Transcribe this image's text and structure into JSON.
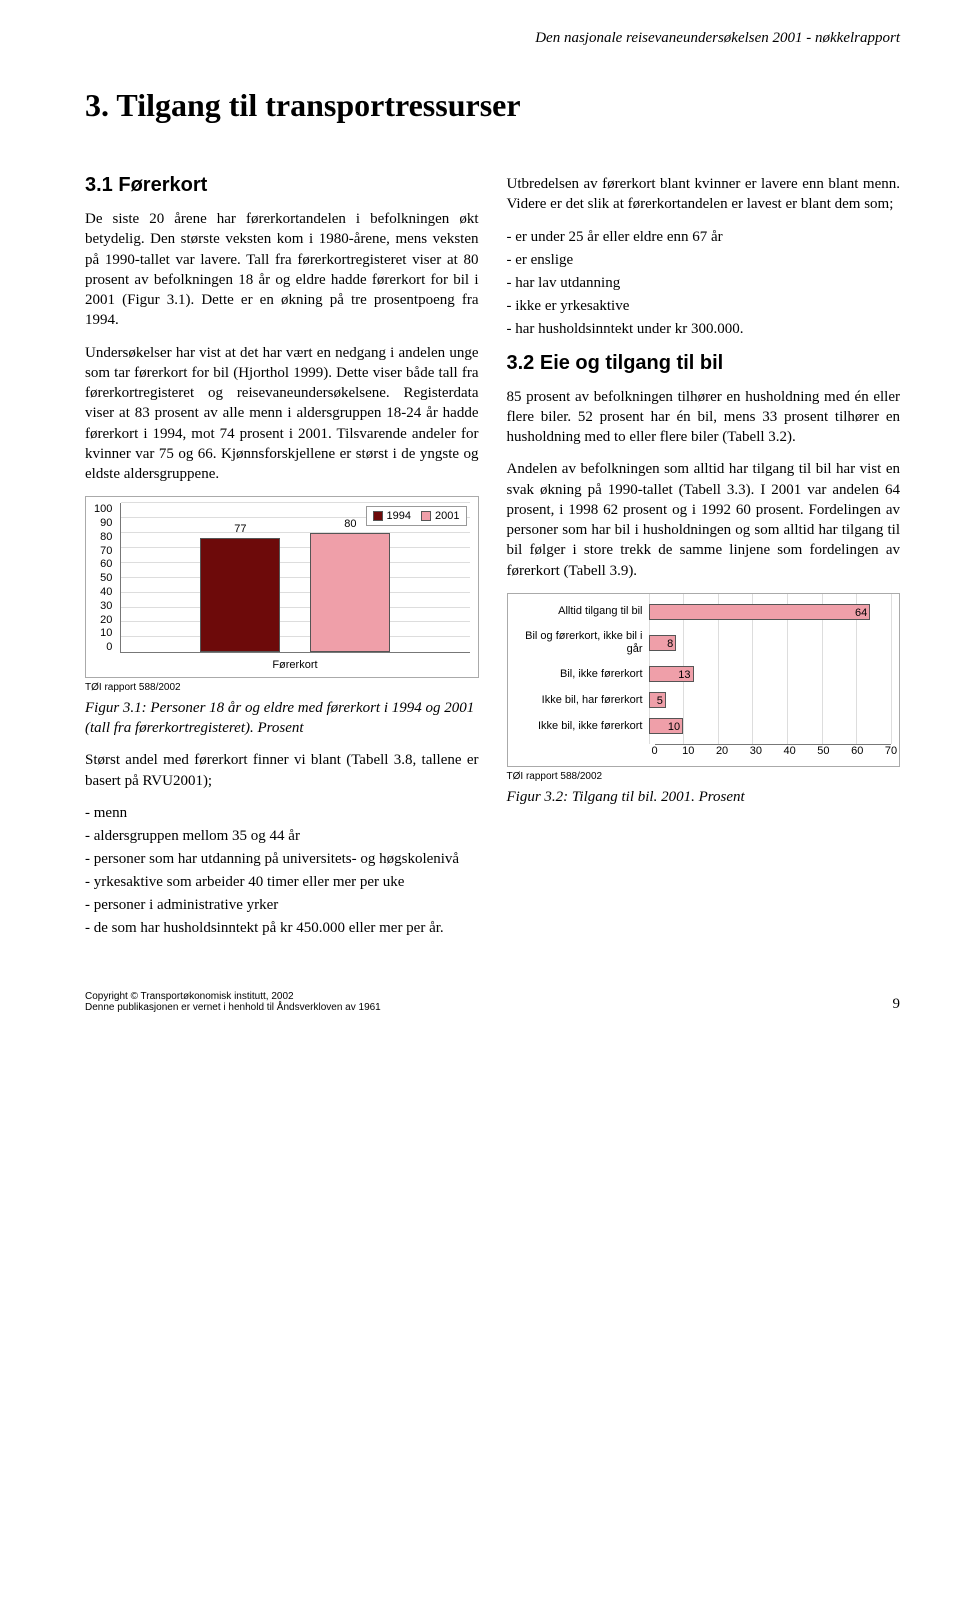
{
  "header": "Den nasjonale reisevaneundersøkelsen 2001 - nøkkelrapport",
  "chapter_title": "3. Tilgang til transportressurser",
  "section_31_heading": "3.1 Førerkort",
  "p1": "De siste 20 årene har førerkortandelen i befolkningen økt betydelig. Den største veksten kom i 1980-årene, mens veksten på 1990-tallet var lavere. Tall fra førerkortregisteret viser at 80 prosent av befolkningen 18 år og eldre hadde førerkort for bil i 2001 (Figur 3.1). Dette er en økning på tre prosentpoeng fra 1994.",
  "p2": "Undersøkelser har vist at det har vært en nedgang i andelen unge som tar førerkort for bil (Hjorthol 1999). Dette viser både tall fra førerkortregisteret og reisevaneundersøkelsene. Registerdata viser at 83 prosent av alle menn i aldersgruppen 18-24 år hadde førerkort i 1994, mot 74 prosent i 2001. Tilsvarende andeler for kvinner var 75 og 66. Kjønnsforskjellene er størst i de yngste og eldste aldersgruppene.",
  "chart1": {
    "type": "bar",
    "categories": [
      "1994",
      "2001"
    ],
    "values": [
      77,
      80
    ],
    "legend_labels": [
      "1994",
      "2001"
    ],
    "bar_colors": [
      "#6d0a0a",
      "#ef9fa9"
    ],
    "ylim": [
      0,
      100
    ],
    "ytick_step": 10,
    "xlabel": "Førerkort",
    "grid_color": "#dddddd",
    "background": "#ffffff"
  },
  "source_text": "TØI rapport 588/2002",
  "fig31_caption": "Figur 3.1: Personer 18 år og eldre med førerkort i 1994 og 2001 (tall fra førerkortregisteret). Prosent",
  "p3": "Størst andel med førerkort finner vi blant (Tabell 3.8, tallene er basert på RVU2001);",
  "list_left": [
    "menn",
    "aldersgruppen mellom 35 og 44 år",
    "personer som har utdanning på universitets- og høgskolenivå",
    "yrkesaktive som arbeider 40 timer eller mer per uke",
    "personer i administrative yrker",
    "de som har husholdsinntekt på kr 450.000 eller mer per år."
  ],
  "p4": "Utbredelsen av førerkort blant kvinner er lavere enn blant menn. Videre er det slik at førerkortandelen er lavest er blant dem som;",
  "list_right": [
    "er under 25 år eller eldre enn 67 år",
    "er enslige",
    "har lav utdanning",
    "ikke er yrkesaktive",
    "har husholdsinntekt under kr 300.000."
  ],
  "section_32_heading": "3.2 Eie og tilgang til bil",
  "p5": "85 prosent av befolkningen tilhører en husholdning med én eller flere biler. 52 prosent har én bil, mens 33 prosent tilhører en husholdning med to eller flere biler (Tabell 3.2).",
  "p6": "Andelen av befolkningen som alltid har tilgang til bil har vist en svak økning på 1990-tallet (Tabell 3.3). I 2001 var andelen 64 prosent, i 1998 62 prosent og i 1992 60 prosent. Fordelingen av personer som har bil i husholdningen og som alltid har tilgang til bil følger i store trekk de samme linjene som fordelingen av førerkort (Tabell 3.9).",
  "chart2": {
    "type": "hbar",
    "labels": [
      "Alltid tilgang til bil",
      "Bil og førerkort, ikke bil i går",
      "Bil, ikke førerkort",
      "Ikke bil, har førerkort",
      "Ikke bil, ikke førerkort"
    ],
    "values": [
      64,
      8,
      13,
      5,
      10
    ],
    "bar_color": "#ef9fa9",
    "xlim": [
      0,
      70
    ],
    "xtick_step": 10,
    "grid_color": "#dddddd"
  },
  "fig32_caption": "Figur 3.2: Tilgang til bil. 2001. Prosent",
  "footer_copyright": "Copyright © Transportøkonomisk institutt, 2002",
  "footer_line2": "Denne publikasjonen er vernet i henhold til Åndsverkloven av 1961",
  "page_number": "9"
}
